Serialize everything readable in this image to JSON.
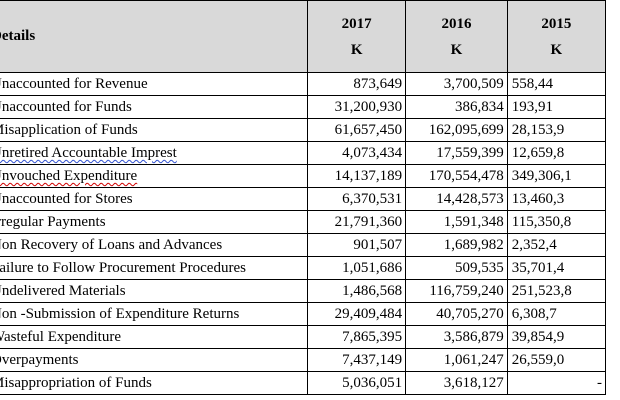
{
  "header": {
    "details": "Details",
    "years": [
      {
        "year": "2017",
        "unit": "K"
      },
      {
        "year": "2016",
        "unit": "K"
      },
      {
        "year": "2015",
        "unit": "K"
      }
    ]
  },
  "rows": [
    {
      "label": "Unaccounted for Revenue",
      "v2017": "873,649",
      "v2016": "3,700,509",
      "v2015": "558,44"
    },
    {
      "label": "Unaccounted for Funds",
      "v2017": "31,200,930",
      "v2016": "386,834",
      "v2015": "193,91"
    },
    {
      "label": "Misapplication of Funds",
      "v2017": "61,657,450",
      "v2016": "162,095,699",
      "v2015": "28,153,9"
    },
    {
      "label": "Unretired Accountable Imprest",
      "v2017": "4,073,434",
      "v2016": "17,559,399",
      "v2015": "12,659,8"
    },
    {
      "label": "Unvouched Expenditure",
      "v2017": "14,137,189",
      "v2016": "170,554,478",
      "v2015": "349,306,1"
    },
    {
      "label": "Unaccounted for Stores",
      "v2017": "6,370,531",
      "v2016": "14,428,573",
      "v2015": "13,460,3"
    },
    {
      "label": "Irregular Payments",
      "v2017": "21,791,360",
      "v2016": "1,591,348",
      "v2015": "115,350,8"
    },
    {
      "label": "Non Recovery of Loans and Advances",
      "v2017": "901,507",
      "v2016": "1,689,982",
      "v2015": "2,352,4"
    },
    {
      "label": "Failure to Follow Procurement Procedures",
      "v2017": "1,051,686",
      "v2016": "509,535",
      "v2015": "35,701,4"
    },
    {
      "label": "Undelivered Materials",
      "v2017": "1,486,568",
      "v2016": "116,759,240",
      "v2015": "251,523,8"
    },
    {
      "label": "Non -Submission of Expenditure Returns",
      "v2017": "29,409,484",
      "v2016": "40,705,270",
      "v2015": "6,308,7"
    },
    {
      "label": "Wasteful Expenditure",
      "v2017": "7,865,395",
      "v2016": "3,586,879",
      "v2015": "39,854,9"
    },
    {
      "label": "Overpayments",
      "v2017": "7,437,149",
      "v2016": "1,061,247",
      "v2015": "26,559,0"
    },
    {
      "label": "Misappropriation of Funds",
      "v2017": "5,036,051",
      "v2016": "3,618,127",
      "v2015": "-"
    }
  ]
}
